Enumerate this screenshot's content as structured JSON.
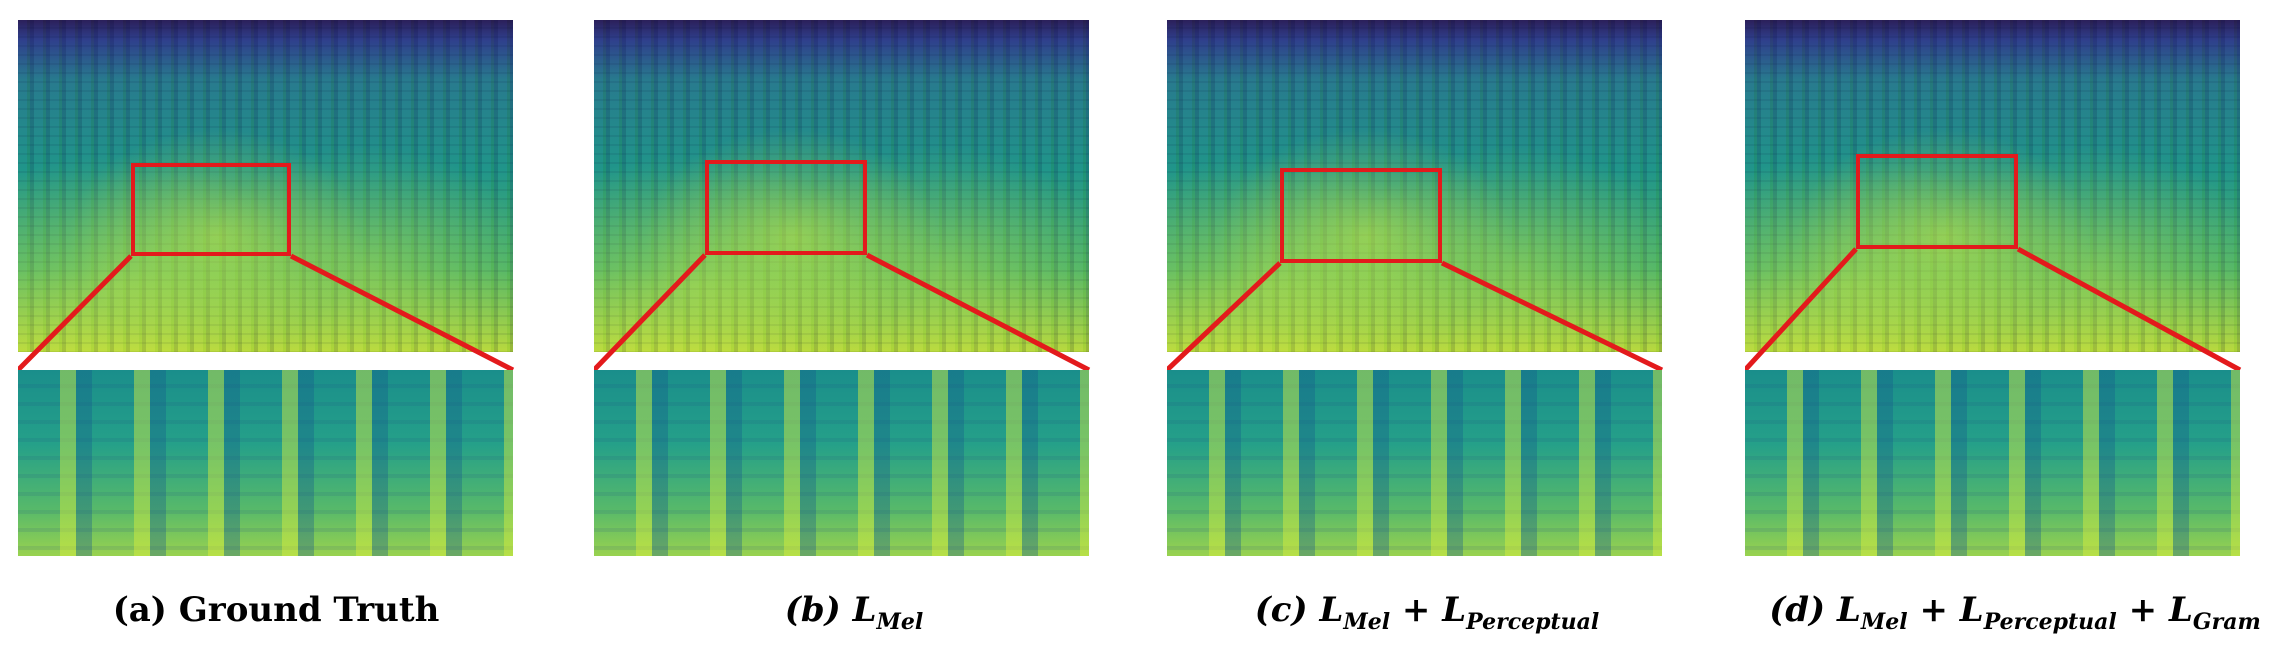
{
  "panels": [
    {
      "caption_prefix": "(a)",
      "caption_main": "Ground Truth",
      "caption_suffix": "",
      "caption_suffix2": ""
    },
    {
      "caption_prefix": "(b)",
      "caption_main": "L",
      "caption_sub": "Mel",
      "caption_suffix": "",
      "caption_suffix2": ""
    },
    {
      "caption_prefix": "(c)",
      "caption_main": "L",
      "caption_sub": "Mel",
      "caption_plus1": "+",
      "caption_main2": "L",
      "caption_sub2": "Perceptual"
    },
    {
      "caption_prefix": "(d)",
      "caption_main": "L",
      "caption_sub": "Mel",
      "caption_plus1": "+",
      "caption_main2": "L",
      "caption_sub2": "Perceptual",
      "caption_plus2": "+",
      "caption_main3": "L",
      "caption_sub3": "Gram"
    }
  ],
  "colors": {
    "box": "#e31a1c"
  }
}
